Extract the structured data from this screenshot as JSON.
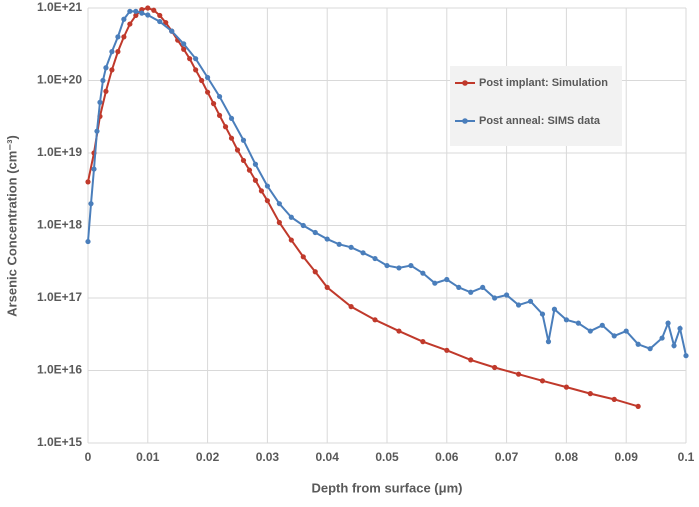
{
  "chart_data": {
    "type": "line",
    "x_label": "Depth from surface (μm)",
    "y_label": "Arsenic Concentration (cm⁻³)",
    "log_y": true,
    "grid": true,
    "legend": "upper right",
    "xlim": [
      0,
      0.1
    ],
    "xticks": [
      0,
      0.01,
      0.02,
      0.03,
      0.04,
      0.05,
      0.06,
      0.07,
      0.08,
      0.09,
      0.1
    ],
    "ylim": [
      1000000000000000.0,
      1e+21
    ],
    "yticks": [
      {
        "value": 1000000000000000.0,
        "label": "1.0E+15"
      },
      {
        "value": 1e+16,
        "label": "1.0E+16"
      },
      {
        "value": 1e+17,
        "label": "1.0E+17"
      },
      {
        "value": 1e+18,
        "label": "1.0E+18"
      },
      {
        "value": 1e+19,
        "label": "1.0E+19"
      },
      {
        "value": 1e+20,
        "label": "1.0E+20"
      },
      {
        "value": 1e+21,
        "label": "1.0E+21"
      }
    ],
    "series": [
      {
        "name": "Post implant: Simulation",
        "color": "#c0392b",
        "x": [
          0,
          0.001,
          0.002,
          0.003,
          0.004,
          0.005,
          0.006,
          0.007,
          0.008,
          0.009,
          0.01,
          0.011,
          0.012,
          0.013,
          0.014,
          0.015,
          0.016,
          0.017,
          0.018,
          0.019,
          0.02,
          0.021,
          0.022,
          0.023,
          0.024,
          0.025,
          0.026,
          0.027,
          0.028,
          0.029,
          0.03,
          0.032,
          0.034,
          0.036,
          0.038,
          0.04,
          0.044,
          0.048,
          0.052,
          0.056,
          0.06,
          0.064,
          0.068,
          0.072,
          0.076,
          0.08,
          0.084,
          0.088,
          0.092
        ],
        "values": [
          4e+18,
          1e+19,
          3.2e+19,
          7.1e+19,
          1.4e+20,
          2.5e+20,
          4e+20,
          6e+20,
          7.9e+20,
          9.5e+20,
          1e+21,
          9.3e+20,
          7.9e+20,
          6.3e+20,
          4.8e+20,
          3.6e+20,
          2.7e+20,
          2e+20,
          1.4e+20,
          1e+20,
          6.9e+19,
          4.8e+19,
          3.3e+19,
          2.3e+19,
          1.6e+19,
          1.1e+19,
          7.9e+18,
          5.8e+18,
          4.2e+18,
          3e+18,
          2.2e+18,
          1.1e+18,
          6.3e+17,
          3.7e+17,
          2.3e+17,
          1.4e+17,
          7.6e+16,
          5e+16,
          3.5e+16,
          2.5e+16,
          1.9e+16,
          1.4e+16,
          1.1e+16,
          8900000000000000.0,
          7200000000000000.0,
          5900000000000000.0,
          4800000000000000.0,
          4000000000000000.0,
          3200000000000000.0
        ]
      },
      {
        "name": "Post anneal: SIMS data",
        "color": "#4a7ebb",
        "x": [
          0,
          0.0005,
          0.001,
          0.0015,
          0.002,
          0.0025,
          0.003,
          0.004,
          0.005,
          0.006,
          0.007,
          0.008,
          0.009,
          0.01,
          0.012,
          0.014,
          0.016,
          0.018,
          0.02,
          0.022,
          0.024,
          0.026,
          0.028,
          0.03,
          0.032,
          0.034,
          0.036,
          0.038,
          0.04,
          0.042,
          0.044,
          0.046,
          0.048,
          0.05,
          0.052,
          0.054,
          0.056,
          0.058,
          0.06,
          0.062,
          0.064,
          0.066,
          0.068,
          0.07,
          0.072,
          0.074,
          0.076,
          0.077,
          0.078,
          0.08,
          0.082,
          0.084,
          0.086,
          0.088,
          0.09,
          0.092,
          0.094,
          0.096,
          0.097,
          0.098,
          0.099,
          0.1
        ],
        "values": [
          6e+17,
          2e+18,
          6e+18,
          2e+19,
          5e+19,
          1e+20,
          1.5e+20,
          2.5e+20,
          4e+20,
          7e+20,
          9e+20,
          9e+20,
          8.5e+20,
          8e+20,
          6.5e+20,
          4.8e+20,
          3.2e+20,
          2e+20,
          1.1e+20,
          6e+19,
          3e+19,
          1.5e+19,
          7e+18,
          3.5e+18,
          2e+18,
          1.3e+18,
          1e+18,
          8e+17,
          6.5e+17,
          5.5e+17,
          5e+17,
          4.2e+17,
          3.5e+17,
          2.8e+17,
          2.6e+17,
          2.8e+17,
          2.2e+17,
          1.6e+17,
          1.8e+17,
          1.4e+17,
          1.2e+17,
          1.4e+17,
          1e+17,
          1.1e+17,
          8e+16,
          9e+16,
          6e+16,
          2.5e+16,
          7e+16,
          5e+16,
          4.5e+16,
          3.5e+16,
          4.2e+16,
          3e+16,
          3.5e+16,
          2.3e+16,
          2e+16,
          2.8e+16,
          4.5e+16,
          2.2e+16,
          3.8e+16,
          1.6e+16
        ]
      }
    ]
  }
}
